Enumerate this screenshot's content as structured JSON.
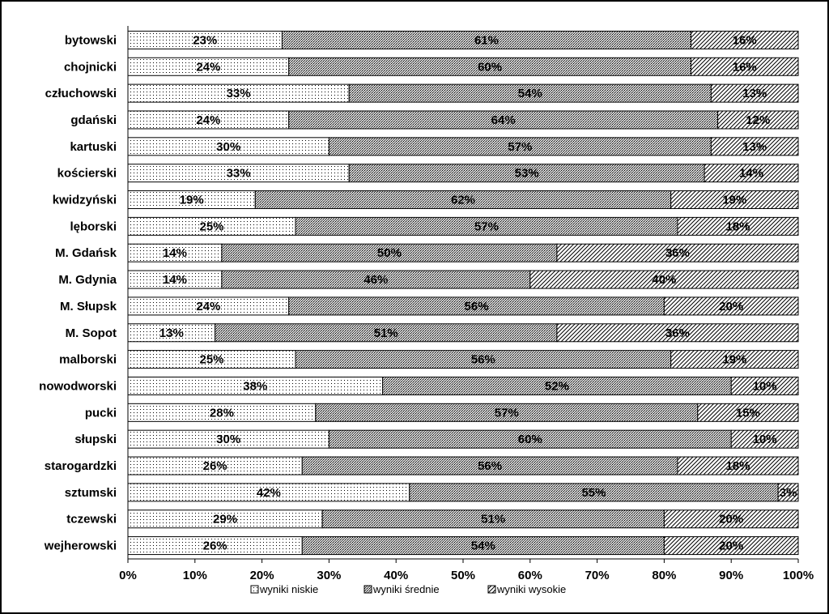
{
  "chart_data": {
    "type": "bar",
    "orientation": "horizontal",
    "stacked": "percent",
    "categories": [
      "bytowski",
      "chojnicki",
      "człuchowski",
      "gdański",
      "kartuski",
      "kościerski",
      "kwidzyński",
      "lęborski",
      "M. Gdańsk",
      "M. Gdynia",
      "M. Słupsk",
      "M. Sopot",
      "malborski",
      "nowodworski",
      "pucki",
      "słupski",
      "starogardzki",
      "sztumski",
      "tczewski",
      "wejherowski"
    ],
    "series": [
      {
        "name": "wyniki niskie",
        "pattern": "dots",
        "values": [
          23,
          24,
          33,
          24,
          30,
          33,
          19,
          25,
          14,
          14,
          24,
          13,
          25,
          38,
          28,
          30,
          26,
          42,
          29,
          26
        ]
      },
      {
        "name": "wyniki  średnie",
        "pattern": "crosshatch",
        "values": [
          61,
          60,
          54,
          64,
          57,
          53,
          62,
          57,
          50,
          46,
          56,
          51,
          56,
          52,
          57,
          60,
          56,
          55,
          51,
          54
        ]
      },
      {
        "name": "wyniki wysokie",
        "pattern": "diagonal",
        "values": [
          16,
          16,
          13,
          12,
          13,
          14,
          19,
          18,
          36,
          40,
          20,
          36,
          19,
          10,
          15,
          10,
          18,
          3,
          20,
          20
        ]
      }
    ],
    "data_labels": [
      [
        "23%",
        "61%",
        "16%"
      ],
      [
        "24%",
        "60%",
        "16%"
      ],
      [
        "33%",
        "54%",
        "13%"
      ],
      [
        "24%",
        "64%",
        "12%"
      ],
      [
        "30%",
        "57%",
        "13%"
      ],
      [
        "33%",
        "53%",
        "14%"
      ],
      [
        "19%",
        "62%",
        "19%"
      ],
      [
        "25%",
        "57%",
        "18%"
      ],
      [
        "14%",
        "50%",
        "36%"
      ],
      [
        "14%",
        "46%",
        "40%"
      ],
      [
        "24%",
        "56%",
        "20%"
      ],
      [
        "13%",
        "51%",
        "36%"
      ],
      [
        "25%",
        "56%",
        "19%"
      ],
      [
        "38%",
        "52%",
        "10%"
      ],
      [
        "28%",
        "57%",
        "15%"
      ],
      [
        "30%",
        "60%",
        "10%"
      ],
      [
        "26%",
        "56%",
        "18%"
      ],
      [
        "42%",
        "55%",
        "3%"
      ],
      [
        "29%",
        "51%",
        "20%"
      ],
      [
        "26%",
        "54%",
        "20%"
      ]
    ],
    "x_ticks": [
      "0%",
      "10%",
      "20%",
      "30%",
      "40%",
      "50%",
      "60%",
      "70%",
      "80%",
      "90%",
      "100%"
    ],
    "xlim": [
      0,
      100
    ],
    "grid": false,
    "legend_position": "bottom",
    "title": "",
    "xlabel": "",
    "ylabel": ""
  }
}
